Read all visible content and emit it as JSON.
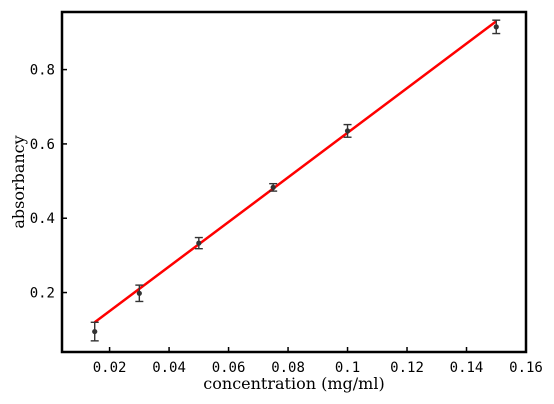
{
  "chart_data": {
    "type": "scatter",
    "xlabel": "concentration (mg/ml)",
    "ylabel": "absorbancy",
    "xlim": [
      0.004,
      0.16
    ],
    "ylim": [
      0.04,
      0.955
    ],
    "x_ticks": [
      0.02,
      0.04,
      0.06,
      0.08,
      0.1,
      0.12,
      0.14,
      0.16
    ],
    "x_tick_labels": [
      "0.02",
      "0.04",
      "0.06",
      "0.08",
      "0.1",
      "0.12",
      "0.14",
      "0.16"
    ],
    "y_ticks": [
      0.2,
      0.4,
      0.6,
      0.8
    ],
    "y_tick_labels": [
      "0.2",
      "0.4",
      "0.6",
      "0.8"
    ],
    "grid": false,
    "legend": "none",
    "series": [
      {
        "kind": "points-with-error-bars",
        "color": "#333333",
        "x": [
          0.015,
          0.03,
          0.05,
          0.075,
          0.1,
          0.15
        ],
        "y": [
          0.095,
          0.198,
          0.333,
          0.483,
          0.635,
          0.915
        ],
        "err": [
          0.025,
          0.022,
          0.015,
          0.01,
          0.017,
          0.018
        ]
      },
      {
        "kind": "fit-line",
        "color": "#ff0000",
        "x": [
          0.015,
          0.15
        ],
        "y": [
          0.12,
          0.93
        ]
      }
    ]
  }
}
